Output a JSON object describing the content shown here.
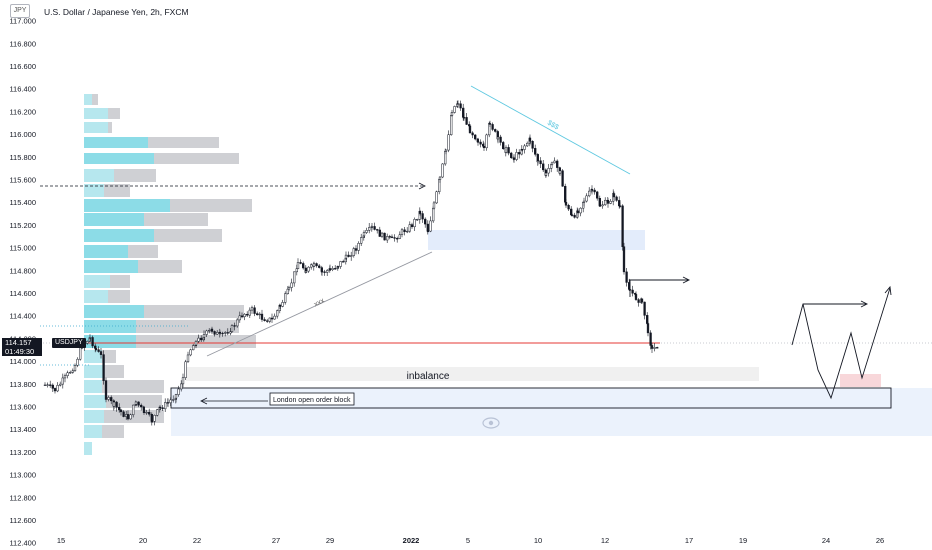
{
  "header": {
    "currency_badge": "JPY",
    "title": "U.S. Dollar / Japanese Yen, 2h, FXCM"
  },
  "price_tag": {
    "price": "114.157",
    "countdown": "01:49:30",
    "symbol": "USDJPY"
  },
  "annotations": {
    "zone_label": "inbalance",
    "order_block_label": "London open order block",
    "trendline_label_up": "xxx",
    "trendline_label_down": "$$$"
  },
  "colors": {
    "candle": "#131722",
    "volume_profile_up": "#b2ebf2",
    "volume_profile_up_strong": "#80deea",
    "volume_profile_down": "#cfd0d4",
    "zone_blue": "#e3ecfb",
    "zone_grey": "#f0f0f0",
    "zone_pink": "#f8d7da",
    "current_price_line": "#e53935",
    "downtrend_line": "#5ec8e0"
  },
  "chart_data": {
    "type": "candlestick",
    "symbol": "USDJPY",
    "timeframe": "2h",
    "source": "FXCM",
    "y_axis": {
      "ticks": [
        "117.000",
        "116.800",
        "116.600",
        "116.400",
        "116.200",
        "116.000",
        "115.800",
        "115.600",
        "115.400",
        "115.200",
        "115.000",
        "114.800",
        "114.600",
        "114.400",
        "114.200",
        "114.000",
        "113.800",
        "113.600",
        "113.400",
        "113.200",
        "113.000",
        "112.800",
        "112.600",
        "112.400"
      ],
      "range": [
        112.4,
        117.0
      ]
    },
    "x_axis": {
      "ticks": [
        "15",
        "20",
        "22",
        "27",
        "29",
        "2022",
        "5",
        "10",
        "12",
        "17",
        "19",
        "24",
        "26"
      ]
    },
    "last_price": 114.157,
    "price_path_approx": [
      {
        "x": "15",
        "y": 113.7
      },
      {
        "x": "17",
        "y": 114.1
      },
      {
        "x": "20",
        "y": 113.6
      },
      {
        "x": "22",
        "y": 114.1
      },
      {
        "x": "27",
        "y": 114.8
      },
      {
        "x": "29",
        "y": 115.0
      },
      {
        "x": "2022",
        "y": 115.2
      },
      {
        "x": "5",
        "y": 116.2
      },
      {
        "x": "10",
        "y": 115.2
      },
      {
        "x": "12",
        "y": 115.4
      },
      {
        "x": "14",
        "y": 114.1
      }
    ],
    "zones": [
      {
        "name": "inbalance",
        "low": 113.9,
        "high": 114.02
      },
      {
        "name": "London open order block",
        "low": 113.56,
        "high": 113.75
      },
      {
        "name": "upper imbalance",
        "low": 114.98,
        "high": 115.13
      }
    ],
    "grid": false,
    "legend": "none"
  }
}
